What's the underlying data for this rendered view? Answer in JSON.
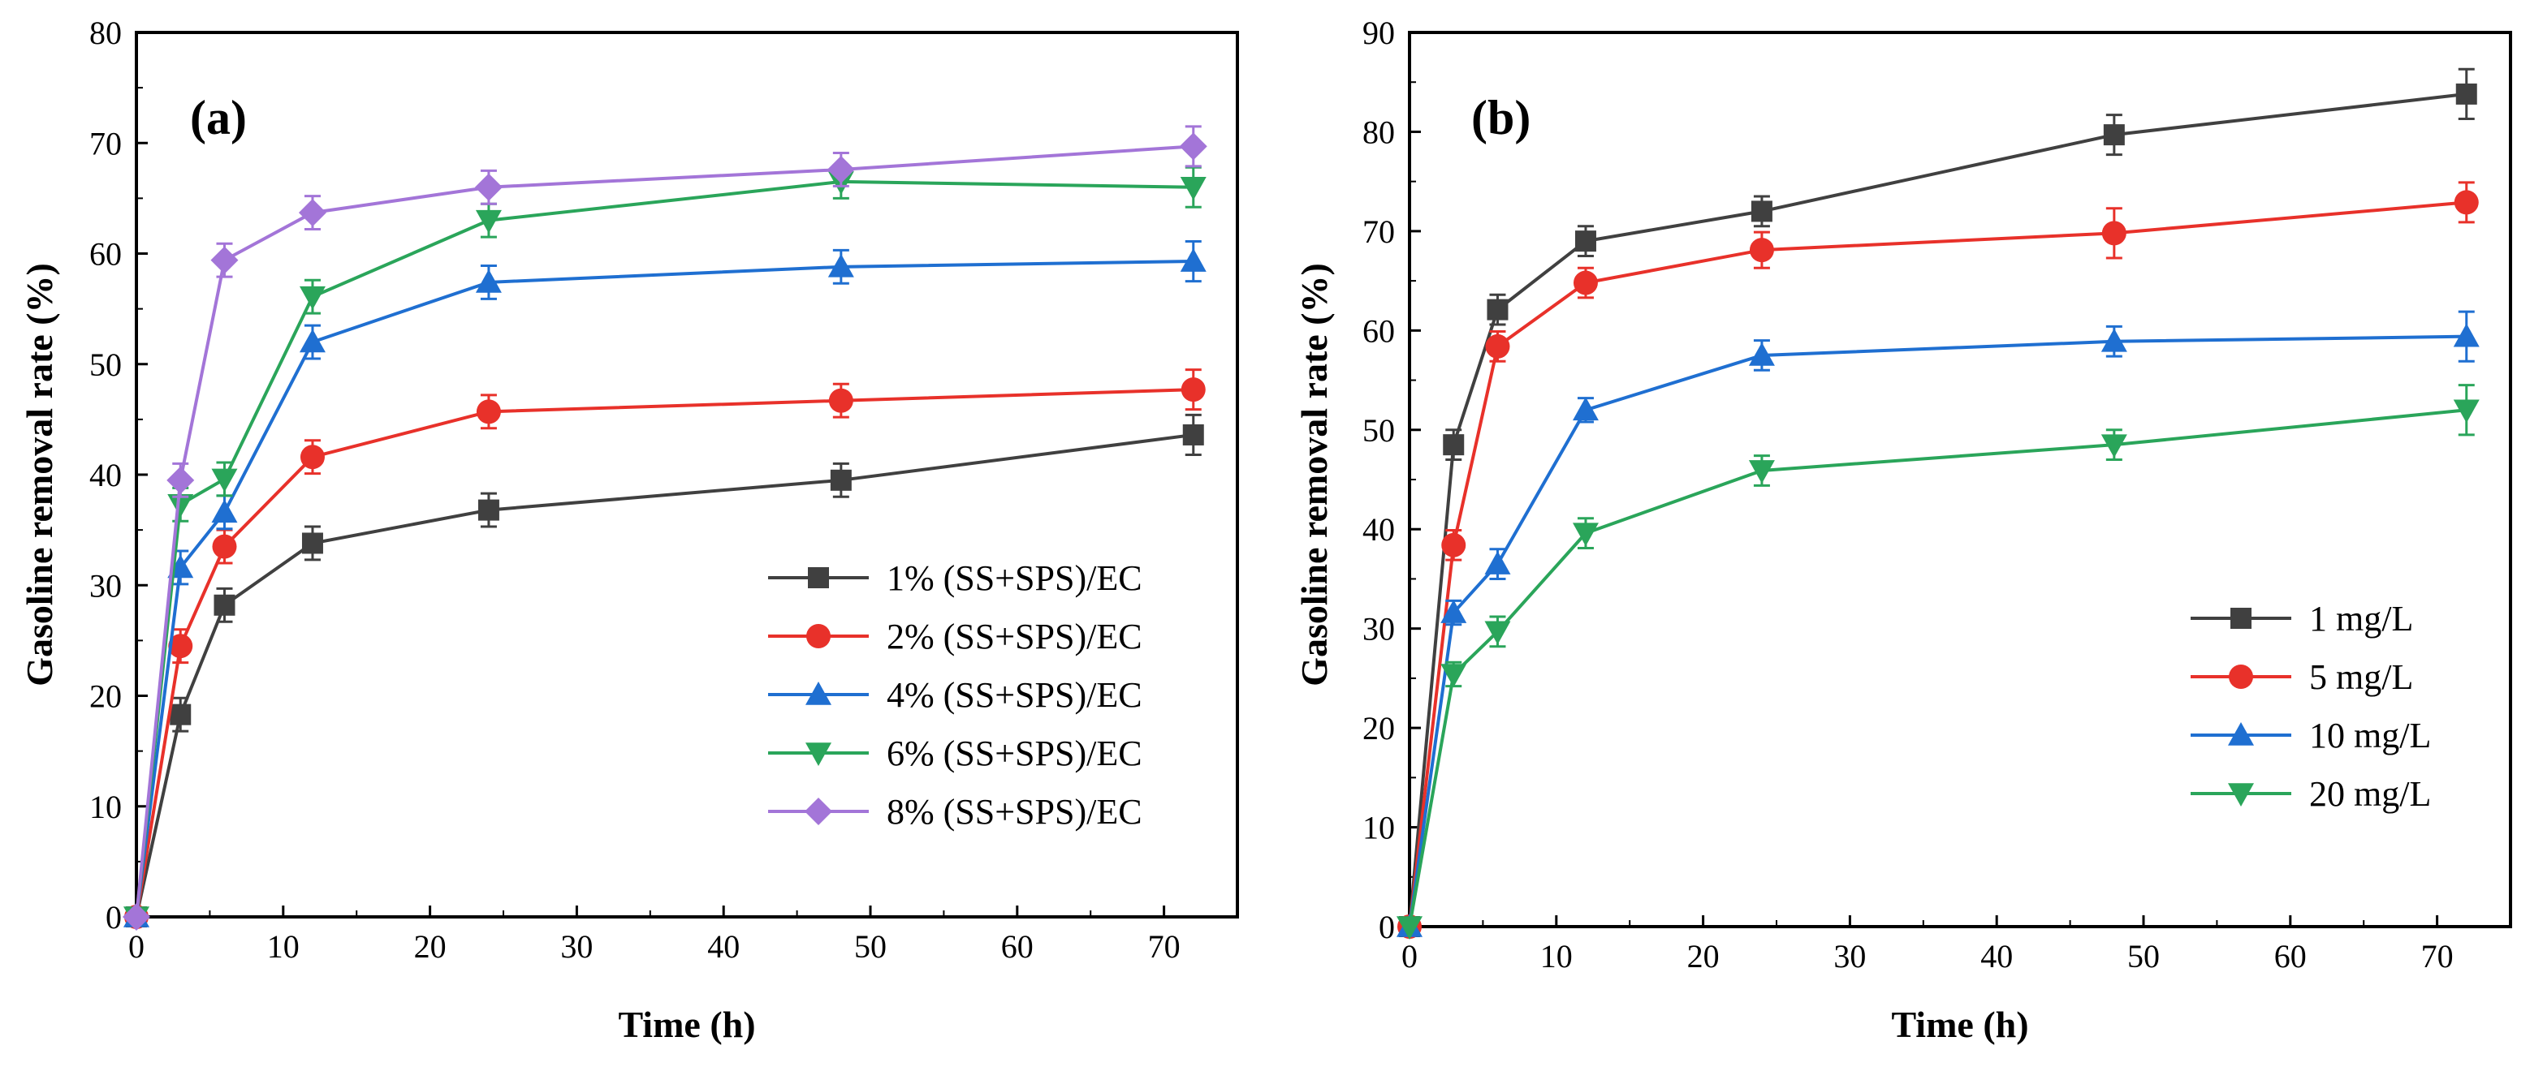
{
  "chart_data": [
    {
      "type": "line",
      "panel_label": "(a)",
      "xlabel": "Time (h)",
      "ylabel": "Gasoline removal rate (%)",
      "xlim": [
        0,
        75
      ],
      "ylim": [
        0,
        80
      ],
      "xticks": [
        0,
        10,
        20,
        30,
        40,
        50,
        60,
        70
      ],
      "yticks": [
        0,
        10,
        20,
        30,
        40,
        50,
        60,
        70,
        80
      ],
      "x": [
        0,
        3,
        6,
        12,
        24,
        48,
        72
      ],
      "legend_position": "lower-right",
      "series": [
        {
          "name": "1% (SS+SPS)/EC",
          "color": "#404040",
          "marker": "square",
          "values": [
            0,
            18.3,
            28.2,
            33.8,
            36.8,
            39.5,
            43.6
          ],
          "errors": [
            0,
            1.5,
            1.5,
            1.5,
            1.5,
            1.5,
            1.8
          ]
        },
        {
          "name": "2% (SS+SPS)/EC",
          "color": "#e8312a",
          "marker": "circle",
          "values": [
            0,
            24.5,
            33.5,
            41.6,
            45.7,
            46.7,
            47.7
          ],
          "errors": [
            0,
            1.5,
            1.5,
            1.5,
            1.5,
            1.5,
            1.8
          ]
        },
        {
          "name": "4% (SS+SPS)/EC",
          "color": "#1f6fd1",
          "marker": "triangle-up",
          "values": [
            0,
            31.6,
            36.6,
            52.0,
            57.4,
            58.8,
            59.3
          ],
          "errors": [
            0,
            1.5,
            1.5,
            1.5,
            1.5,
            1.5,
            1.8
          ]
        },
        {
          "name": "6% (SS+SPS)/EC",
          "color": "#2aa55a",
          "marker": "triangle-down",
          "values": [
            0,
            37.3,
            39.6,
            56.1,
            63.0,
            66.5,
            66.0
          ],
          "errors": [
            0,
            1.5,
            1.5,
            1.5,
            1.5,
            1.5,
            1.8
          ]
        },
        {
          "name": "8% (SS+SPS)/EC",
          "color": "#a375d8",
          "marker": "diamond",
          "values": [
            0,
            39.5,
            59.4,
            63.7,
            66.0,
            67.6,
            69.7
          ],
          "errors": [
            0,
            1.5,
            1.5,
            1.5,
            1.5,
            1.5,
            1.8
          ]
        }
      ]
    },
    {
      "type": "line",
      "panel_label": "(b)",
      "xlabel": "Time (h)",
      "ylabel": "Gasoline removal rate (%)",
      "xlim": [
        0,
        75
      ],
      "ylim": [
        0,
        90
      ],
      "xticks": [
        0,
        10,
        20,
        30,
        40,
        50,
        60,
        70
      ],
      "yticks": [
        0,
        10,
        20,
        30,
        40,
        50,
        60,
        70,
        80,
        90
      ],
      "x": [
        0,
        3,
        6,
        12,
        24,
        48,
        72
      ],
      "legend_position": "lower-right",
      "series": [
        {
          "name": "1 mg/L",
          "color": "#404040",
          "marker": "square",
          "values": [
            0,
            48.5,
            62.1,
            69.0,
            72.0,
            79.7,
            83.8
          ],
          "errors": [
            0,
            1.5,
            1.5,
            1.5,
            1.5,
            2.0,
            2.5
          ]
        },
        {
          "name": "5 mg/L",
          "color": "#e8312a",
          "marker": "circle",
          "values": [
            0,
            38.4,
            58.4,
            64.8,
            68.1,
            69.8,
            72.9
          ],
          "errors": [
            0,
            1.5,
            1.5,
            1.5,
            1.8,
            2.5,
            2.0
          ]
        },
        {
          "name": "10 mg/L",
          "color": "#1f6fd1",
          "marker": "triangle-up",
          "values": [
            0,
            31.6,
            36.5,
            52.0,
            57.5,
            58.9,
            59.4
          ],
          "errors": [
            0,
            1.2,
            1.5,
            1.2,
            1.5,
            1.5,
            2.5
          ]
        },
        {
          "name": "20 mg/L",
          "color": "#2aa55a",
          "marker": "triangle-down",
          "values": [
            0,
            25.4,
            29.7,
            39.6,
            45.9,
            48.5,
            52.0
          ],
          "errors": [
            0,
            1.2,
            1.5,
            1.5,
            1.5,
            1.5,
            2.5
          ]
        }
      ]
    }
  ]
}
